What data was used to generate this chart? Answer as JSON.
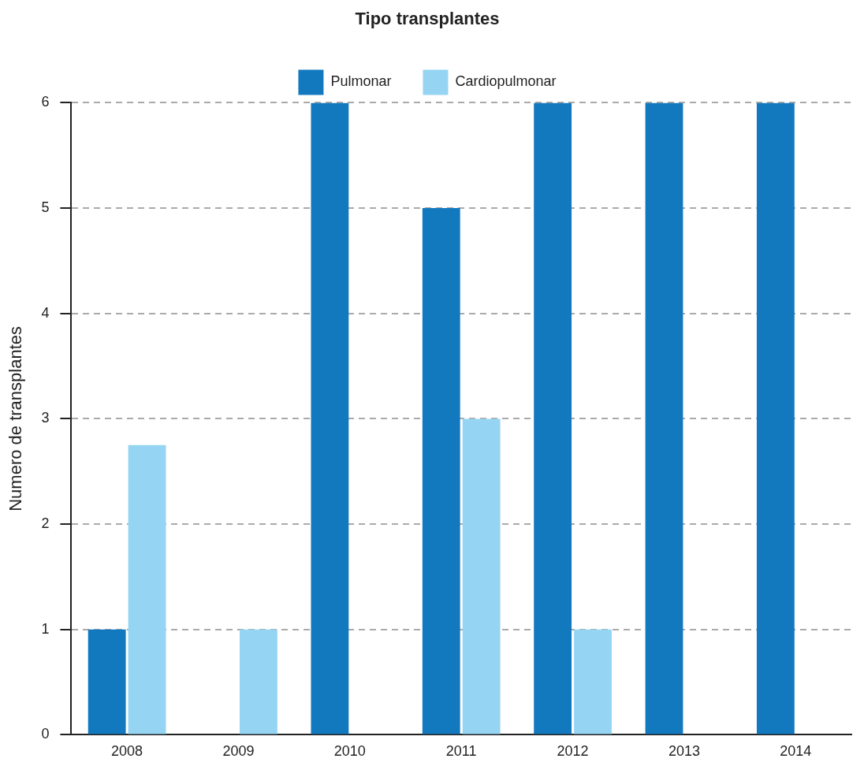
{
  "chart_data": {
    "type": "bar",
    "legend_title": "Tipo transplantes",
    "ylabel": "Numero de transplantes",
    "categories": [
      "2008",
      "2009",
      "2010",
      "2011",
      "2012",
      "2013",
      "2014"
    ],
    "series": [
      {
        "name": "Pulmonar",
        "color": "#1379bf",
        "values": [
          1,
          0,
          6,
          5,
          6,
          6,
          6
        ]
      },
      {
        "name": "Cardiopulmonar",
        "color": "#95d5f3",
        "values": [
          2.75,
          1,
          0,
          3,
          1,
          0,
          0
        ]
      }
    ],
    "ylim": [
      0,
      6
    ],
    "yticks": [
      0,
      1,
      2,
      3,
      4,
      5,
      6
    ],
    "grid": "y",
    "legend": "top"
  }
}
